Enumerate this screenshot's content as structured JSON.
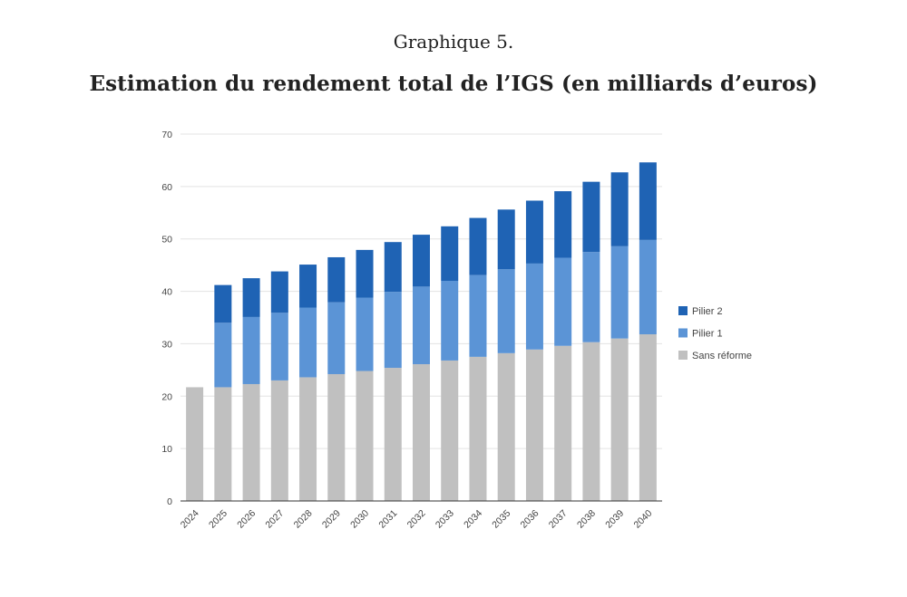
{
  "figure": {
    "number_label": "Graphique 5.",
    "title": "Estimation du rendement total de l’IGS (en milliards d’euros)"
  },
  "chart_data": {
    "type": "bar",
    "stacked": true,
    "categories": [
      "2024",
      "2025",
      "2026",
      "2027",
      "2028",
      "2029",
      "2030",
      "2031",
      "2032",
      "2033",
      "2034",
      "2035",
      "2036",
      "2037",
      "2038",
      "2039",
      "2040"
    ],
    "series": [
      {
        "name": "Sans réforme",
        "color": "#c0c0c0",
        "values": [
          21.7,
          21.7,
          22.3,
          23.0,
          23.6,
          24.2,
          24.8,
          25.4,
          26.1,
          26.8,
          27.5,
          28.2,
          28.9,
          29.6,
          30.3,
          31.0,
          31.8
        ]
      },
      {
        "name": "Pilier 1",
        "color": "#5b94d6",
        "values": [
          0,
          12.3,
          12.8,
          12.9,
          13.3,
          13.7,
          14.0,
          14.5,
          14.8,
          15.2,
          15.6,
          16.0,
          16.4,
          16.8,
          17.2,
          17.6,
          18.0
        ]
      },
      {
        "name": "Pilier 2",
        "color": "#1f63b4",
        "values": [
          0,
          7.2,
          7.4,
          7.9,
          8.2,
          8.6,
          9.1,
          9.5,
          9.9,
          10.4,
          10.9,
          11.4,
          12.0,
          12.7,
          13.4,
          14.1,
          14.8
        ]
      }
    ],
    "y_ticks": [
      "0",
      "10",
      "20",
      "30",
      "40",
      "50",
      "60",
      "70"
    ],
    "ylim": [
      0,
      70
    ],
    "xlabel": "",
    "ylabel": "",
    "grid": true,
    "legend": [
      "Pilier 2",
      "Pilier 1",
      "Sans réforme"
    ],
    "legend_position": "right"
  }
}
